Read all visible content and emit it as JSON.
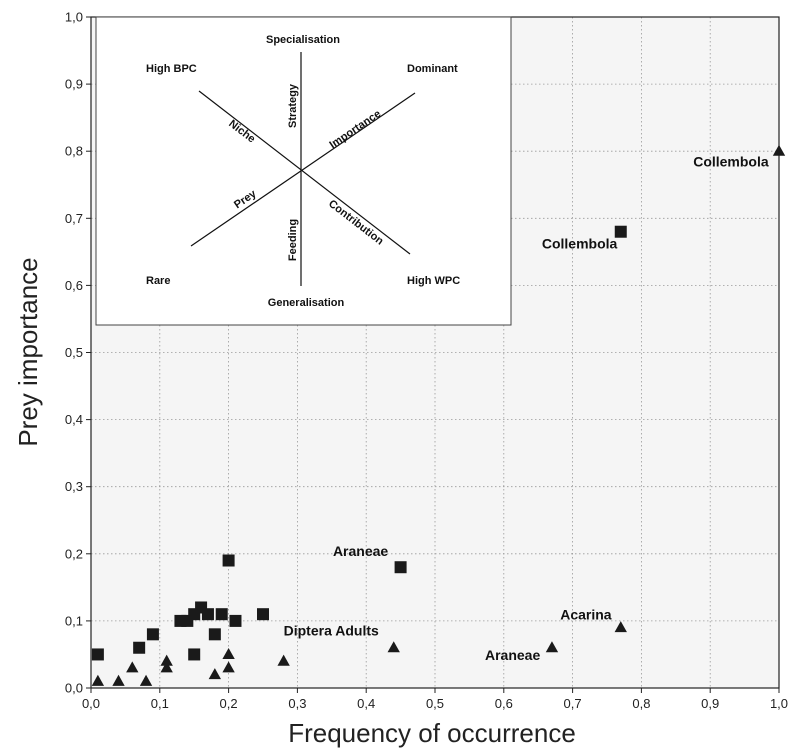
{
  "chart_data": {
    "type": "scatter",
    "xlabel": "Frequency of occurrence",
    "ylabel": "Prey importance",
    "xlim": [
      0,
      1
    ],
    "ylim": [
      0,
      1
    ],
    "x_ticks": [
      "0,0",
      "0,1",
      "0,2",
      "0,3",
      "0,4",
      "0,5",
      "0,6",
      "0,7",
      "0,8",
      "0,9",
      "1,0"
    ],
    "y_ticks": [
      "0,0",
      "0,1",
      "0,2",
      "0,3",
      "0,4",
      "0,5",
      "0,6",
      "0,7",
      "0,8",
      "0,9",
      "1,0"
    ],
    "grid": "dotted",
    "background": "#f5f5f5",
    "series": [
      {
        "marker": "square",
        "color": "#1a1a1a",
        "points": [
          {
            "x": 0.01,
            "y": 0.05
          },
          {
            "x": 0.07,
            "y": 0.06
          },
          {
            "x": 0.09,
            "y": 0.08
          },
          {
            "x": 0.13,
            "y": 0.1
          },
          {
            "x": 0.14,
            "y": 0.1
          },
          {
            "x": 0.15,
            "y": 0.11
          },
          {
            "x": 0.16,
            "y": 0.12
          },
          {
            "x": 0.17,
            "y": 0.11
          },
          {
            "x": 0.15,
            "y": 0.05
          },
          {
            "x": 0.18,
            "y": 0.08
          },
          {
            "x": 0.19,
            "y": 0.11
          },
          {
            "x": 0.2,
            "y": 0.19
          },
          {
            "x": 0.21,
            "y": 0.1
          },
          {
            "x": 0.25,
            "y": 0.11
          },
          {
            "x": 0.45,
            "y": 0.18
          },
          {
            "x": 0.77,
            "y": 0.68
          }
        ]
      },
      {
        "marker": "triangle",
        "color": "#1a1a1a",
        "points": [
          {
            "x": 0.01,
            "y": 0.01
          },
          {
            "x": 0.04,
            "y": 0.01
          },
          {
            "x": 0.06,
            "y": 0.03
          },
          {
            "x": 0.08,
            "y": 0.01
          },
          {
            "x": 0.11,
            "y": 0.03
          },
          {
            "x": 0.11,
            "y": 0.04
          },
          {
            "x": 0.18,
            "y": 0.02
          },
          {
            "x": 0.2,
            "y": 0.03
          },
          {
            "x": 0.2,
            "y": 0.05
          },
          {
            "x": 0.28,
            "y": 0.04
          },
          {
            "x": 0.44,
            "y": 0.06
          },
          {
            "x": 0.67,
            "y": 0.06
          },
          {
            "x": 0.77,
            "y": 0.09
          },
          {
            "x": 1.0,
            "y": 0.8
          }
        ]
      }
    ],
    "annotations": [
      {
        "text": "Collembola",
        "x": 0.985,
        "y": 0.777,
        "anchor": "end"
      },
      {
        "text": "Collembola",
        "x": 0.765,
        "y": 0.655,
        "anchor": "end"
      },
      {
        "text": "Araneae",
        "x": 0.432,
        "y": 0.197,
        "anchor": "end"
      },
      {
        "text": "Diptera Adults",
        "x": 0.28,
        "y": 0.078,
        "anchor": "start"
      },
      {
        "text": "Acarina",
        "x": 0.682,
        "y": 0.102,
        "anchor": "start"
      },
      {
        "text": "Araneae",
        "x": 0.653,
        "y": 0.042,
        "anchor": "end"
      }
    ],
    "inset": {
      "corner_labels": {
        "top": "Specialisation",
        "bottom": "Generalisation",
        "top_left": "High BPC",
        "top_right": "Dominant",
        "bottom_left": "Rare",
        "bottom_right": "High WPC"
      },
      "axis_labels": {
        "strategy": "Strategy",
        "feeding": "Feeding",
        "niche": "Niche",
        "importance": "Importance",
        "prey": "Prey",
        "contribution": "Contribution"
      }
    }
  }
}
